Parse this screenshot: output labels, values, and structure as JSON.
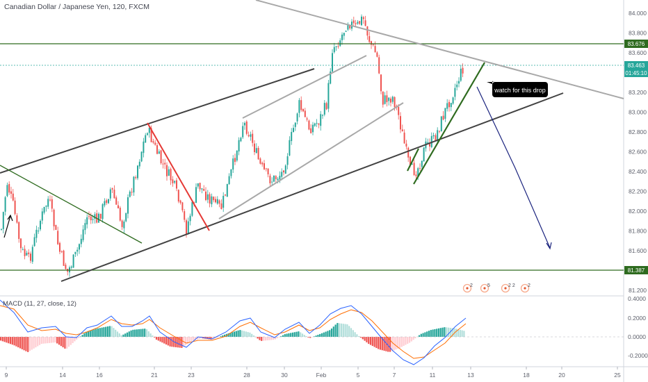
{
  "header": {
    "title": "Canadian Dollar / Japanese Yen, 120, FXCM"
  },
  "macd": {
    "label": "MACD (11, 27, close, 12)",
    "y_ticks": [
      "0.4000",
      "0.2000",
      "0.0000",
      "-0.2000"
    ]
  },
  "price_axis": {
    "ticks": [
      "84.000",
      "83.800",
      "83.600",
      "83.400",
      "83.200",
      "83.000",
      "82.800",
      "82.600",
      "82.400",
      "82.200",
      "82.000",
      "81.800",
      "81.600",
      "81.400",
      "81.200"
    ],
    "badges": [
      {
        "value": "83.676",
        "color": "#2e6b1f"
      },
      {
        "value": "83.463",
        "color": "#26a69a"
      },
      {
        "value": "01:45:10",
        "color": "#26a69a"
      },
      {
        "value": "81.387",
        "color": "#2e6b1f"
      }
    ]
  },
  "time_axis": {
    "ticks": [
      "9",
      "14",
      "16",
      "21",
      "23",
      "28",
      "30",
      "Feb",
      "5",
      "7",
      "11",
      "13",
      "18",
      "20",
      "25"
    ]
  },
  "annotation": {
    "text": "watch for this drop"
  },
  "event_markers": [
    "2",
    "5",
    "2 2",
    "2"
  ],
  "colors": {
    "up": "#26a69a",
    "down": "#ef5350",
    "support_line": "#2e6b1f",
    "channel_dark": "#424242",
    "channel_light": "#a8a8a8",
    "trend_red": "#e53935",
    "forecast_arrow": "#1a237e",
    "macd_line": "#2962ff",
    "signal_line": "#ff6d00"
  }
}
